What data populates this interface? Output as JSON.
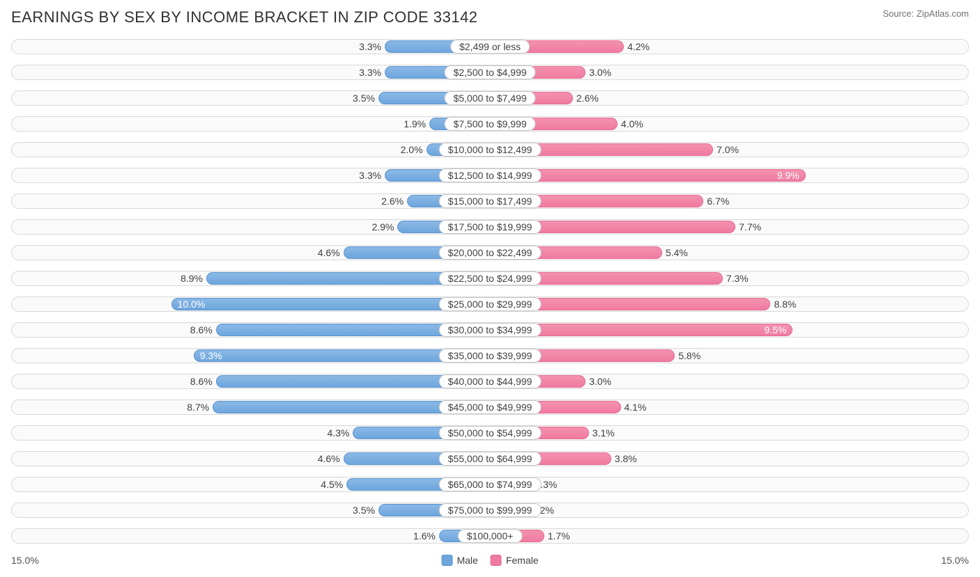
{
  "title": "EARNINGS BY SEX BY INCOME BRACKET IN ZIP CODE 33142",
  "source": "Source: ZipAtlas.com",
  "axis_max_label": "15.0%",
  "axis_max": 15.0,
  "legend": {
    "male": "Male",
    "female": "Female"
  },
  "colors": {
    "male_fill": "#6ea6dd",
    "male_border": "#5a94d0",
    "female_fill": "#ef7ba0",
    "female_border": "#e66a92",
    "row_bg": "#fafafa",
    "row_border": "#d8d8d8",
    "text": "#404040"
  },
  "rows": [
    {
      "label": "$2,499 or less",
      "male": 3.3,
      "female": 4.2
    },
    {
      "label": "$2,500 to $4,999",
      "male": 3.3,
      "female": 3.0
    },
    {
      "label": "$5,000 to $7,499",
      "male": 3.5,
      "female": 2.6
    },
    {
      "label": "$7,500 to $9,999",
      "male": 1.9,
      "female": 4.0
    },
    {
      "label": "$10,000 to $12,499",
      "male": 2.0,
      "female": 7.0
    },
    {
      "label": "$12,500 to $14,999",
      "male": 3.3,
      "female": 9.9
    },
    {
      "label": "$15,000 to $17,499",
      "male": 2.6,
      "female": 6.7
    },
    {
      "label": "$17,500 to $19,999",
      "male": 2.9,
      "female": 7.7
    },
    {
      "label": "$20,000 to $22,499",
      "male": 4.6,
      "female": 5.4
    },
    {
      "label": "$22,500 to $24,999",
      "male": 8.9,
      "female": 7.3
    },
    {
      "label": "$25,000 to $29,999",
      "male": 10.0,
      "female": 8.8
    },
    {
      "label": "$30,000 to $34,999",
      "male": 8.6,
      "female": 9.5
    },
    {
      "label": "$35,000 to $39,999",
      "male": 9.3,
      "female": 5.8
    },
    {
      "label": "$40,000 to $44,999",
      "male": 8.6,
      "female": 3.0
    },
    {
      "label": "$45,000 to $49,999",
      "male": 8.7,
      "female": 4.1
    },
    {
      "label": "$50,000 to $54,999",
      "male": 4.3,
      "female": 3.1
    },
    {
      "label": "$55,000 to $64,999",
      "male": 4.6,
      "female": 3.8
    },
    {
      "label": "$65,000 to $74,999",
      "male": 4.5,
      "female": 1.3
    },
    {
      "label": "$75,000 to $99,999",
      "male": 3.5,
      "female": 1.2
    },
    {
      "label": "$100,000+",
      "male": 1.6,
      "female": 1.7
    }
  ],
  "inside_label_threshold": 9.0
}
